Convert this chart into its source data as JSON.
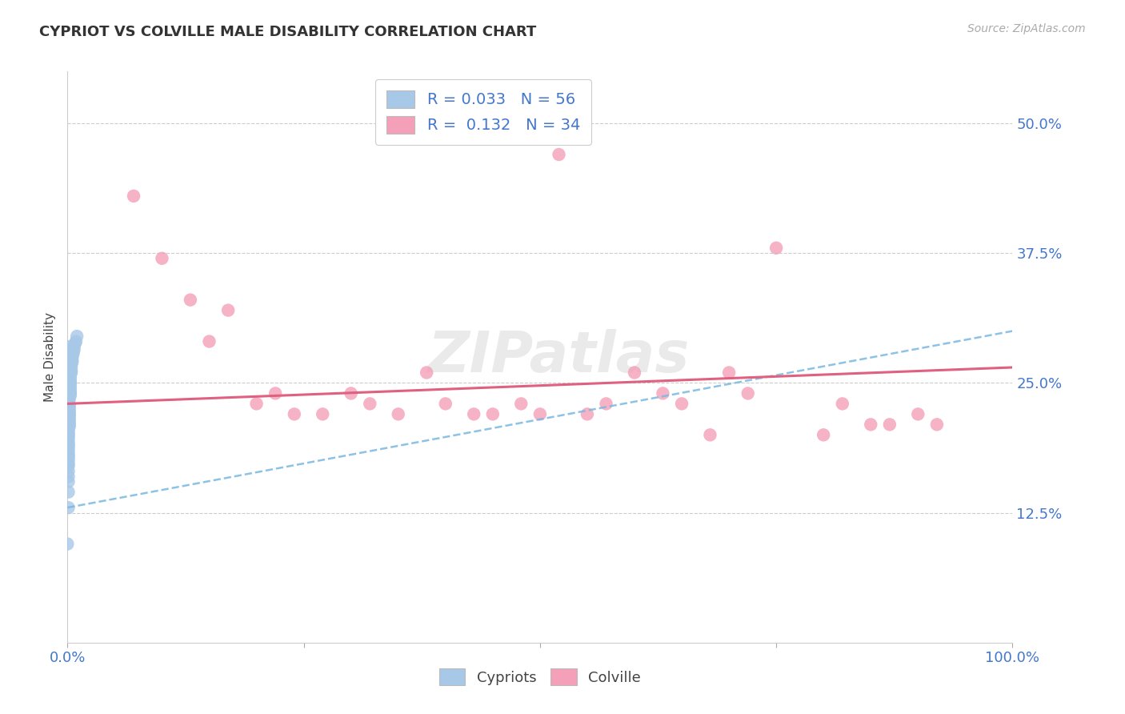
{
  "title": "CYPRIOT VS COLVILLE MALE DISABILITY CORRELATION CHART",
  "source": "Source: ZipAtlas.com",
  "ylabel": "Male Disability",
  "xlim": [
    0.0,
    1.0
  ],
  "ylim": [
    0.0,
    0.55
  ],
  "yticks": [
    0.125,
    0.25,
    0.375,
    0.5
  ],
  "ytick_labels": [
    "12.5%",
    "25.0%",
    "37.5%",
    "50.0%"
  ],
  "xticks": [
    0.0,
    0.25,
    0.5,
    0.75,
    1.0
  ],
  "xtick_labels": [
    "0.0%",
    "",
    "",
    "",
    "100.0%"
  ],
  "legend_cypriot_R": "0.033",
  "legend_cypriot_N": "56",
  "legend_colville_R": "0.132",
  "legend_colville_N": "34",
  "cypriot_color": "#a8c8e8",
  "colville_color": "#f4a0b8",
  "cypriot_line_color": "#7ab8e0",
  "colville_line_color": "#e06080",
  "watermark": "ZIPatlas",
  "background_color": "#ffffff",
  "cypriot_x": [
    0.0,
    0.0,
    0.001,
    0.001,
    0.001,
    0.001,
    0.001,
    0.001,
    0.001,
    0.001,
    0.001,
    0.001,
    0.001,
    0.001,
    0.001,
    0.001,
    0.001,
    0.001,
    0.001,
    0.001,
    0.001,
    0.001,
    0.002,
    0.002,
    0.002,
    0.002,
    0.002,
    0.002,
    0.002,
    0.002,
    0.002,
    0.002,
    0.002,
    0.003,
    0.003,
    0.003,
    0.003,
    0.003,
    0.003,
    0.003,
    0.003,
    0.003,
    0.004,
    0.004,
    0.004,
    0.004,
    0.005,
    0.005,
    0.005,
    0.006,
    0.006,
    0.007,
    0.007,
    0.008,
    0.009,
    0.01
  ],
  "cypriot_y": [
    0.285,
    0.095,
    0.13,
    0.145,
    0.155,
    0.16,
    0.165,
    0.17,
    0.172,
    0.175,
    0.178,
    0.18,
    0.182,
    0.185,
    0.188,
    0.19,
    0.192,
    0.195,
    0.198,
    0.2,
    0.202,
    0.205,
    0.208,
    0.21,
    0.212,
    0.215,
    0.218,
    0.22,
    0.222,
    0.225,
    0.228,
    0.23,
    0.235,
    0.238,
    0.24,
    0.242,
    0.245,
    0.248,
    0.25,
    0.252,
    0.255,
    0.258,
    0.26,
    0.262,
    0.265,
    0.268,
    0.27,
    0.272,
    0.275,
    0.278,
    0.28,
    0.282,
    0.285,
    0.288,
    0.29,
    0.295
  ],
  "colville_x": [
    0.07,
    0.1,
    0.13,
    0.15,
    0.17,
    0.2,
    0.22,
    0.24,
    0.27,
    0.3,
    0.32,
    0.35,
    0.38,
    0.4,
    0.43,
    0.45,
    0.48,
    0.5,
    0.52,
    0.55,
    0.57,
    0.6,
    0.63,
    0.65,
    0.68,
    0.7,
    0.72,
    0.75,
    0.8,
    0.82,
    0.85,
    0.87,
    0.9,
    0.92
  ],
  "colville_y": [
    0.43,
    0.37,
    0.33,
    0.29,
    0.32,
    0.23,
    0.24,
    0.22,
    0.22,
    0.24,
    0.23,
    0.22,
    0.26,
    0.23,
    0.22,
    0.22,
    0.23,
    0.22,
    0.47,
    0.22,
    0.23,
    0.26,
    0.24,
    0.23,
    0.2,
    0.26,
    0.24,
    0.38,
    0.2,
    0.23,
    0.21,
    0.21,
    0.22,
    0.21
  ],
  "cypriot_trend": [
    0.13,
    0.3
  ],
  "colville_trend": [
    0.23,
    0.265
  ]
}
